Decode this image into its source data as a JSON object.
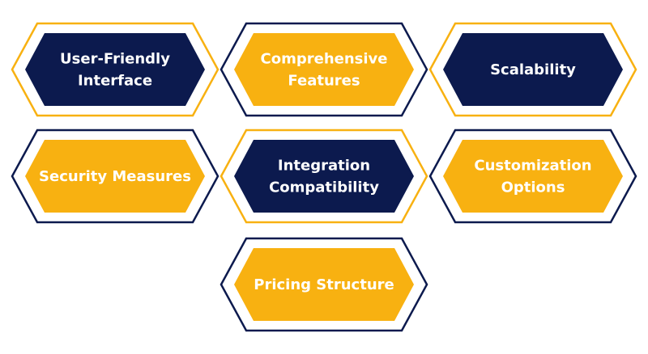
{
  "colors": {
    "navy": "#0c1a4e",
    "gold": "#f8b111",
    "background": "#ffffff",
    "text": "#ffffff"
  },
  "items": [
    {
      "lines": [
        "User-Friendly",
        "Interface"
      ],
      "fill": "navy",
      "outline": "gold"
    },
    {
      "lines": [
        "Comprehensive",
        "Features"
      ],
      "fill": "gold",
      "outline": "navy"
    },
    {
      "lines": [
        "Scalability"
      ],
      "fill": "navy",
      "outline": "gold"
    },
    {
      "lines": [
        "Security Measures"
      ],
      "fill": "gold",
      "outline": "navy"
    },
    {
      "lines": [
        "Integration",
        "Compatibility"
      ],
      "fill": "navy",
      "outline": "gold"
    },
    {
      "lines": [
        "Customization",
        "Options"
      ],
      "fill": "gold",
      "outline": "navy"
    },
    {
      "lines": [
        "Pricing Structure"
      ],
      "fill": "gold",
      "outline": "navy"
    }
  ]
}
